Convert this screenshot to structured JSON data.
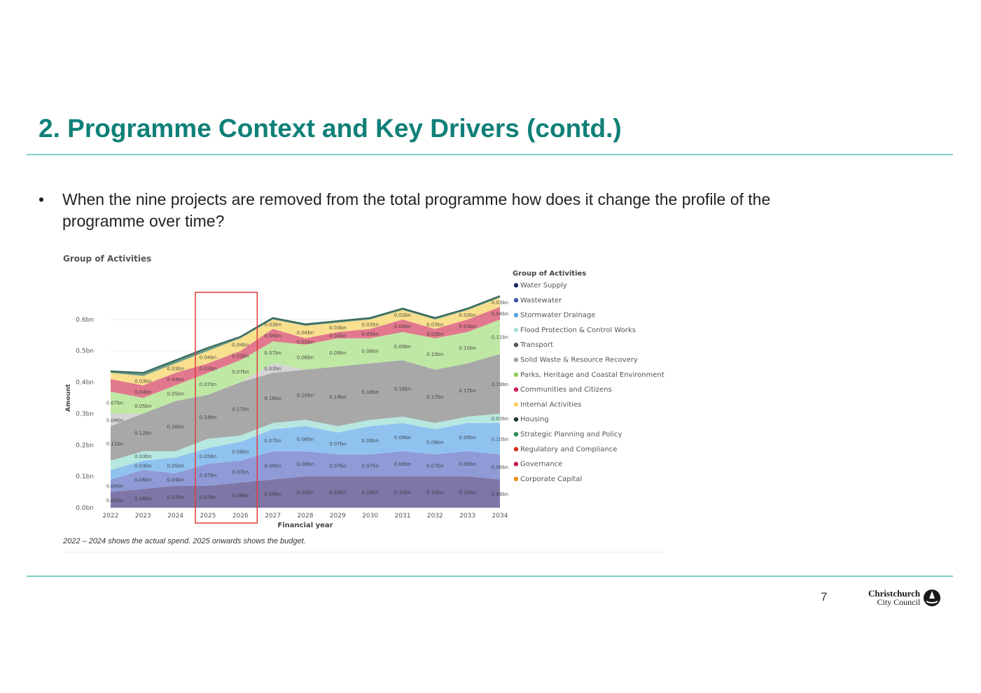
{
  "slide": {
    "title": "2. Programme Context and Key Drivers (contd.)",
    "bullet": "When the nine projects are removed from the total programme how does it change the profile of the programme over time?",
    "page_number": "7",
    "logo": {
      "line1": "Christchurch",
      "line2": "City Council"
    }
  },
  "chart_data": {
    "type": "area",
    "stacked": true,
    "title": "Group of Activities",
    "xlabel": "Financial year",
    "ylabel": "Amount",
    "x": [
      "2022",
      "2023",
      "2024",
      "2025",
      "2026",
      "2027",
      "2028",
      "2029",
      "2030",
      "2031",
      "2032",
      "2033",
      "2034"
    ],
    "y_ticks": [
      "0.0bn",
      "0.1bn",
      "0.2bn",
      "0.3bn",
      "0.4bn",
      "0.5bn",
      "0.6bn"
    ],
    "ylim": [
      0,
      0.7
    ],
    "highlight": {
      "from": "2025",
      "to": "2026",
      "color": "#e23b3b"
    },
    "footnote": "2022 – 2024 shows the actual spend.  2025 onwards shows the budget.",
    "legend": {
      "title": "Group of Activities",
      "position": "right",
      "items": [
        {
          "name": "Water Supply",
          "color": "#1f2a5a"
        },
        {
          "name": "Wastewater",
          "color": "#3b56a6"
        },
        {
          "name": "Stormwater Drainage",
          "color": "#5aa0e0"
        },
        {
          "name": "Flood Protection & Control Works",
          "color": "#a8e0d8"
        },
        {
          "name": "Transport",
          "color": "#555555"
        },
        {
          "name": "Solid Waste & Resource Recovery",
          "color": "#a0a0a0"
        },
        {
          "name": "Parks, Heritage and Coastal Environment",
          "color": "#8fcf5a"
        },
        {
          "name": "Communities and Citizens",
          "color": "#cc2255"
        },
        {
          "name": "Internal Activities",
          "color": "#f5d060"
        },
        {
          "name": "Housing",
          "color": "#1a3a2a"
        },
        {
          "name": "Strategic Planning and Policy",
          "color": "#2a8a5a"
        },
        {
          "name": "Regulatory and Compliance",
          "color": "#d03020"
        },
        {
          "name": "Governance",
          "color": "#c01860"
        },
        {
          "name": "Corporate Capital",
          "color": "#f0901a"
        }
      ]
    },
    "series": [
      {
        "name": "Water Supply",
        "color": "#7e76a6",
        "values": [
          0.05,
          0.06,
          0.07,
          0.07,
          0.08,
          0.09,
          0.1,
          0.1,
          0.1,
          0.1,
          0.1,
          0.1,
          0.09
        ],
        "labels": [
          "0.05bn",
          "0.06bn",
          "0.07bn",
          "0.07bn",
          "0.08bn",
          "0.09bn",
          "0.10bn",
          "0.10bn",
          "0.10bn",
          "0.10bn",
          "0.10bn",
          "0.10bn",
          "0.09bn"
        ]
      },
      {
        "name": "Wastewater",
        "color": "#8f9ad6",
        "values": [
          0.04,
          0.06,
          0.04,
          0.07,
          0.07,
          0.09,
          0.08,
          0.07,
          0.07,
          0.08,
          0.07,
          0.08,
          0.08
        ],
        "labels": [
          "0.04bn",
          "0.06bn",
          "0.04bn",
          "0.07bn",
          "0.07bn",
          "0.09bn",
          "0.08bn",
          "0.07bn",
          "0.07bn",
          "0.08bn",
          "0.07bn",
          "0.08bn",
          "0.08bn"
        ]
      },
      {
        "name": "Stormwater Drainage",
        "color": "#90c2f0",
        "values": [
          0.03,
          0.03,
          0.05,
          0.05,
          0.06,
          0.07,
          0.08,
          0.07,
          0.09,
          0.09,
          0.08,
          0.09,
          0.1
        ],
        "labels": [
          "",
          "0.03bn",
          "0.05bn",
          "0.05bn",
          "0.06bn",
          "0.07bn",
          "0.08bn",
          "0.07bn",
          "0.09bn",
          "0.09bn",
          "0.08bn",
          "0.09bn",
          "0.10bn"
        ]
      },
      {
        "name": "Flood Protection & Control Works",
        "color": "#b6e8e0",
        "values": [
          0.03,
          0.03,
          0.02,
          0.03,
          0.02,
          0.02,
          0.02,
          0.02,
          0.02,
          0.02,
          0.02,
          0.02,
          0.03
        ],
        "labels": [
          "",
          "0.03bn",
          "",
          "",
          "",
          "",
          "",
          "",
          "",
          "",
          "",
          "",
          "0.03bn"
        ]
      },
      {
        "name": "Solid Waste & Resource Recovery",
        "color": "#a8a8a8",
        "values": [
          0.11,
          0.12,
          0.16,
          0.14,
          0.17,
          0.16,
          0.16,
          0.19,
          0.18,
          0.18,
          0.17,
          0.17,
          0.19
        ],
        "labels": [
          "0.11bn",
          "0.12bn",
          "0.16bn",
          "0.14bn",
          "0.17bn",
          "0.16bn",
          "0.16bn",
          "0.19bn",
          "0.18bn",
          "0.18bn",
          "0.17bn",
          "0.17bn",
          "0.19bn"
        ]
      },
      {
        "name": "Transport",
        "color": "#d4d4d4",
        "values": [
          0.04,
          0.0,
          0.0,
          0.0,
          0.0,
          0.03,
          0.0,
          0.0,
          0.0,
          0.0,
          0.0,
          0.0,
          0.0
        ],
        "labels": [
          "0.04bn",
          "",
          "",
          "",
          "",
          "0.03bn",
          "",
          "",
          "",
          "",
          "",
          "",
          ""
        ]
      },
      {
        "name": "Parks, Heritage and Coastal Environment",
        "color": "#bfe8a4",
        "values": [
          0.07,
          0.05,
          0.05,
          0.07,
          0.07,
          0.07,
          0.08,
          0.09,
          0.08,
          0.09,
          0.1,
          0.1,
          0.11
        ],
        "labels": [
          "0.07bn",
          "0.05bn",
          "0.05bn",
          "0.07bn",
          "0.07bn",
          "0.07bn",
          "0.08bn",
          "0.09bn",
          "0.08bn",
          "0.09bn",
          "0.10bn",
          "0.10bn",
          "0.11bn"
        ]
      },
      {
        "name": "Communities and Citizens",
        "color": "#e2788e",
        "values": [
          0.04,
          0.04,
          0.04,
          0.03,
          0.03,
          0.04,
          0.02,
          0.02,
          0.03,
          0.04,
          0.03,
          0.04,
          0.04
        ],
        "labels": [
          "",
          "0.04bn",
          "0.04bn",
          "0.03bn",
          "0.03bn",
          "0.04bn",
          "0.02bn",
          "0.02bn",
          "0.03bn",
          "0.04bn",
          "0.03bn",
          "0.04bn",
          "0.04bn"
        ]
      },
      {
        "name": "Internal Activities",
        "color": "#f8e08e",
        "values": [
          0.02,
          0.03,
          0.03,
          0.04,
          0.04,
          0.03,
          0.04,
          0.03,
          0.03,
          0.03,
          0.03,
          0.03,
          0.03
        ],
        "labels": [
          "",
          "0.03bn",
          "0.03bn",
          "0.04bn",
          "0.04bn",
          "0.03bn",
          "0.04bn",
          "0.03bn",
          "0.03bn",
          "0.03bn",
          "0.03bn",
          "0.03bn",
          "0.03bn"
        ]
      },
      {
        "name": "Strategic Planning and Policy",
        "color": "#6a9a8a",
        "values": [
          0.005,
          0.01,
          0.01,
          0.01,
          0.005,
          0.005,
          0.005,
          0.005,
          0.005,
          0.005,
          0.005,
          0.005,
          0.005
        ],
        "labels": [
          "",
          "",
          "",
          "",
          "",
          "",
          "",
          "",
          "",
          "",
          "",
          "",
          ""
        ]
      }
    ]
  }
}
